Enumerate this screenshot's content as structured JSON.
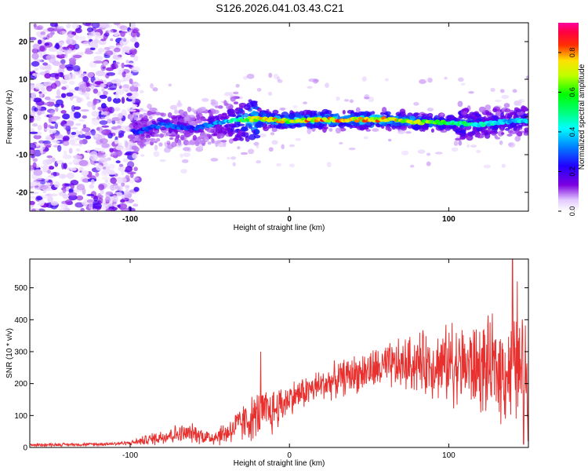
{
  "title": "S126.2026.041.03.43.C21",
  "chart_data": [
    {
      "type": "heatmap",
      "xlabel": "Height of straight line (km)",
      "ylabel": "Frequency (Hz)",
      "xlim": [
        -163,
        150
      ],
      "ylim": [
        -25,
        25
      ],
      "xticks": [
        -100,
        0,
        100
      ],
      "xtick_labels": [
        "-100",
        "0",
        "100"
      ],
      "yticks": [
        -20,
        -10,
        0,
        10,
        20
      ],
      "ytick_labels": [
        "-20",
        "-10",
        "0",
        "10",
        "20"
      ],
      "grid": false,
      "colorbar": {
        "label": "Normalized spectral amplitude",
        "range": [
          0,
          0.95
        ],
        "ticks": [
          0,
          0.2,
          0.4,
          0.6,
          0.8
        ],
        "tick_labels": [
          "0.0",
          "0.2",
          "0.4",
          "0.6",
          "0.8"
        ],
        "colormap": "rainbow (white → purple → blue → cyan → green → yellow → red → magenta)"
      },
      "ridge": {
        "description": "Peak amplitude concentrated near 0 Hz between heights -95 km and 145 km; diffuse noise below -95 km",
        "points": [
          {
            "x": -95,
            "y": -4,
            "amp": 0.3
          },
          {
            "x": -80,
            "y": -2,
            "amp": 0.35
          },
          {
            "x": -60,
            "y": -3,
            "amp": 0.3
          },
          {
            "x": -40,
            "y": -1,
            "amp": 0.4
          },
          {
            "x": -20,
            "y": -0.5,
            "amp": 0.85
          },
          {
            "x": 0,
            "y": -1,
            "amp": 0.8
          },
          {
            "x": 20,
            "y": -0.7,
            "amp": 0.9
          },
          {
            "x": 40,
            "y": -0.8,
            "amp": 0.9
          },
          {
            "x": 60,
            "y": -0.7,
            "amp": 0.85
          },
          {
            "x": 80,
            "y": -1.3,
            "amp": 0.8
          },
          {
            "x": 100,
            "y": -1.5,
            "amp": 0.6
          },
          {
            "x": 120,
            "y": -2,
            "amp": 0.5
          },
          {
            "x": 140,
            "y": -1,
            "amp": 0.45
          }
        ]
      }
    },
    {
      "type": "line",
      "xlabel": "Height of straight line (km)",
      "ylabel": "SNR (10 * v/v)",
      "xlim": [
        -163,
        150
      ],
      "ylim": [
        0,
        590
      ],
      "xticks": [
        -100,
        0,
        100
      ],
      "xtick_labels": [
        "-100",
        "0",
        "100"
      ],
      "yticks": [
        0,
        100,
        200,
        300,
        400,
        500
      ],
      "ytick_labels": [
        "0",
        "100",
        "200",
        "300",
        "400",
        "500"
      ],
      "grid": false,
      "series": [
        {
          "name": "SNR",
          "color": "#e8312f",
          "envelope": {
            "x": [
              -163,
              -120,
              -100,
              -85,
              -75,
              -60,
              -50,
              -40,
              -30,
              -20,
              -10,
              0,
              20,
              40,
              60,
              80,
              100,
              120,
              140,
              150
            ],
            "mean": [
              8,
              10,
              14,
              28,
              40,
              45,
              30,
              45,
              75,
              100,
              115,
              155,
              195,
              230,
              250,
              265,
              260,
              250,
              240,
              235
            ],
            "spread": [
              6,
              6,
              8,
              25,
              35,
              35,
              30,
              45,
              70,
              90,
              90,
              60,
              60,
              70,
              85,
              110,
              140,
              170,
              200,
              220
            ]
          },
          "spikes": [
            {
              "x": -18,
              "y": 300
            },
            {
              "x": 102,
              "y": 390
            },
            {
              "x": 140,
              "y": 590
            },
            {
              "x": 143,
              "y": 520
            },
            {
              "x": 147,
              "y": 10
            }
          ]
        }
      ]
    }
  ],
  "colors": {
    "line": "#e8312f",
    "axis": "#000000",
    "background": "#ffffff"
  }
}
